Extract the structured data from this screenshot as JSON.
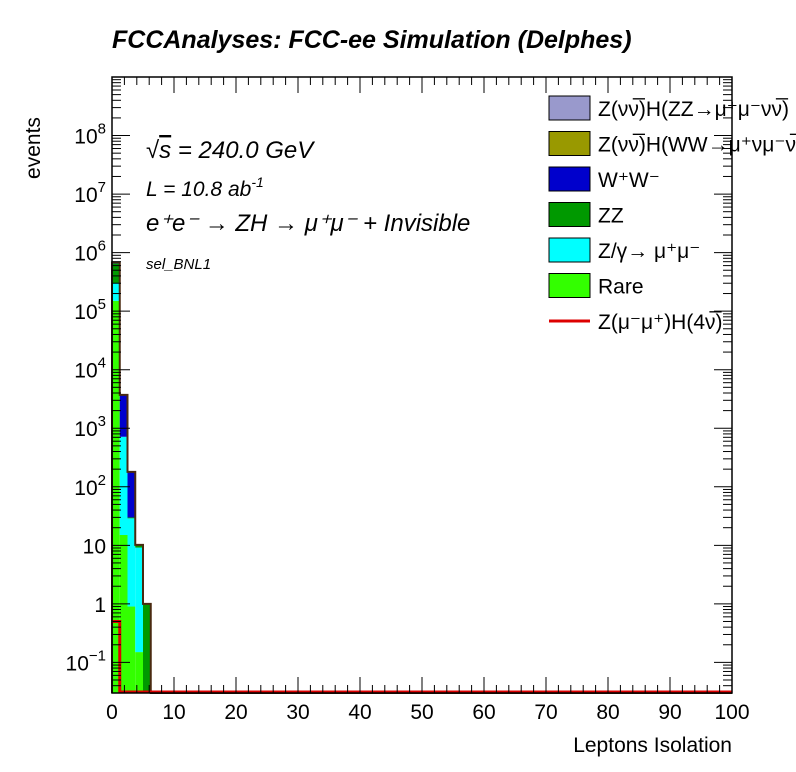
{
  "chart_data": {
    "type": "bar",
    "stacked": true,
    "title": "FCCAnalyses: FCC-ee Simulation (Delphes)",
    "xlabel": "Leptons Isolation",
    "ylabel": "events",
    "xlim": [
      0,
      100
    ],
    "ylim": [
      0.03,
      1000000000
    ],
    "log_y": true,
    "bin_width": 1.25,
    "x": [
      0.625,
      1.875,
      3.125,
      4.375,
      5.625
    ],
    "x_ticks": [
      "0",
      "10",
      "20",
      "30",
      "40",
      "50",
      "60",
      "70",
      "80",
      "90",
      "100"
    ],
    "y_ticks": [
      {
        "value": 0.1,
        "base": "10",
        "exp": "−1"
      },
      {
        "value": 1,
        "base": "1",
        "exp": ""
      },
      {
        "value": 10,
        "base": "10",
        "exp": ""
      },
      {
        "value": 100,
        "base": "10",
        "exp": "2"
      },
      {
        "value": 1000,
        "base": "10",
        "exp": "3"
      },
      {
        "value": 10000,
        "base": "10",
        "exp": "4"
      },
      {
        "value": 100000,
        "base": "10",
        "exp": "5"
      },
      {
        "value": 1000000,
        "base": "10",
        "exp": "6"
      },
      {
        "value": 10000000,
        "base": "10",
        "exp": "7"
      },
      {
        "value": 100000000,
        "base": "10",
        "exp": "8"
      }
    ],
    "series": [
      {
        "name": "Rare",
        "color": "#33ff00",
        "values": [
          150000,
          15,
          0.9,
          0.15,
          0
        ]
      },
      {
        "name": "Z/γ→ μ⁺μ⁻",
        "color": "#00ffff",
        "values": [
          150000,
          700,
          28,
          9,
          0
        ]
      },
      {
        "name": "ZZ",
        "color": "#009900",
        "values": [
          350000,
          0,
          1,
          1,
          1
        ]
      },
      {
        "name": "W⁺W⁻",
        "color": "#0000cc",
        "values": [
          30000,
          3000,
          150,
          0,
          0
        ]
      },
      {
        "name": "Z(νν̅)H(WW→μ⁺νμ⁻ν̅)",
        "color": "#999900",
        "values": [
          0.2,
          0.1,
          0,
          0,
          0
        ]
      },
      {
        "name": "Z(νν̅)H(ZZ→μ⁺μ⁻νν̅)",
        "color": "#9999cc",
        "values": [
          0.5,
          0.3,
          0,
          0,
          0
        ]
      }
    ],
    "signal": {
      "name": "Z(μ⁻μ⁺)H(4ν̅)",
      "color": "#dd0000",
      "values": [
        0.5,
        0,
        0,
        0,
        0
      ]
    },
    "annotations": {
      "sqrt_prefix": "√",
      "sqrt_s": "s",
      "energy": " = 240.0 GeV",
      "lumi": "L = 10.8 ab",
      "lumi_exp": "-1",
      "process": "e⁺e⁻ → ZH → μ⁺μ⁻ + Invisible",
      "selection": "sel_BNL1"
    },
    "legend_entries": [
      {
        "name": "Z(νν̅)H(ZZ→μ⁺μ⁻νν̅)",
        "color": "#9999cc",
        "kind": "box"
      },
      {
        "name": "Z(νν̅)H(WW→μ⁺νμ⁻ν̅)",
        "color": "#999900",
        "kind": "box"
      },
      {
        "name": "W⁺W⁻",
        "color": "#0000cc",
        "kind": "box"
      },
      {
        "name": "ZZ",
        "color": "#009900",
        "kind": "box"
      },
      {
        "name": "Z/γ→ μ⁺μ⁻",
        "color": "#00ffff",
        "kind": "box"
      },
      {
        "name": "Rare",
        "color": "#33ff00",
        "kind": "box"
      },
      {
        "name": "Z(μ⁻μ⁺)H(4ν̅)",
        "color": "#dd0000",
        "kind": "line"
      }
    ],
    "legend_position": "top-right"
  }
}
